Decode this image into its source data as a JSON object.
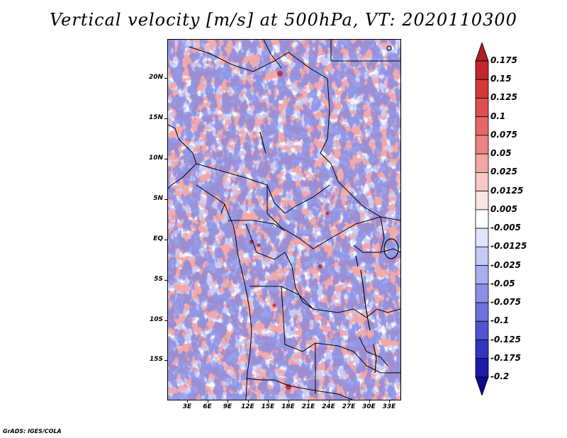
{
  "title": "Vertical velocity [m/s] at 500hPa, VT: 2020110300",
  "footer": "GrADS: IGES/COLA",
  "lat_labels": [
    "20N",
    "15N",
    "10N",
    "5N",
    "EQ",
    "5S",
    "10S",
    "15S"
  ],
  "lon_labels": [
    "3E",
    "6E",
    "9E",
    "12E",
    "15E",
    "18E",
    "21E",
    "24E",
    "27E",
    "30E",
    "33E"
  ],
  "colorbar": {
    "labels": [
      "0.175",
      "0.15",
      "0.125",
      "0.1",
      "0.075",
      "0.05",
      "0.025",
      "0.0125",
      "0.005",
      "-0.005",
      "-0.0125",
      "-0.025",
      "-0.05",
      "-0.075",
      "-0.1",
      "-0.125",
      "-0.175",
      "-0.2"
    ],
    "colors": [
      "#b01d24",
      "#c4262c",
      "#d43838",
      "#e04e4e",
      "#e56767",
      "#eb8484",
      "#f2a6a6",
      "#f7c8c8",
      "#fbe4e4",
      "#ffffff",
      "#dfe3fb",
      "#c3c8f6",
      "#a8aef0",
      "#8b90e6",
      "#6e70dc",
      "#5153d0",
      "#3335c0",
      "#1c1aa8",
      "#0e0a8c"
    ]
  }
}
